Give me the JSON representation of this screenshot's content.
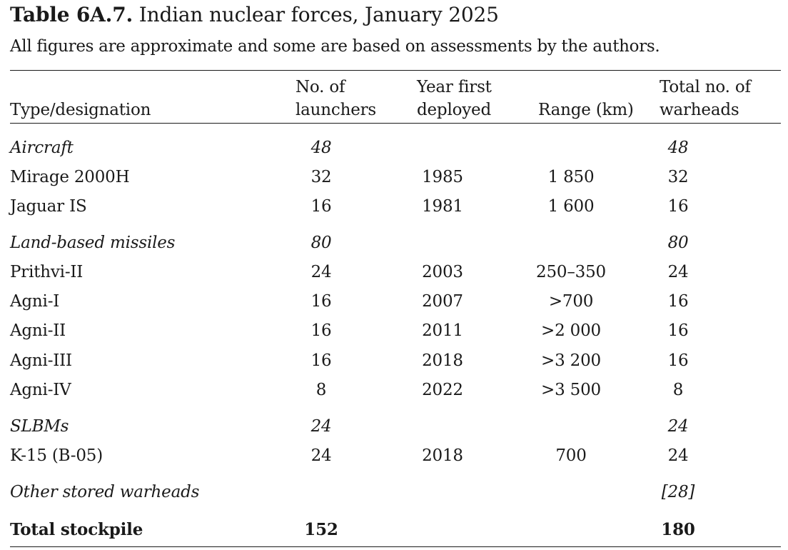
{
  "caption": {
    "label": "Table 6A.7.",
    "title": " Indian nuclear forces, January 2025"
  },
  "note": "All figures are approximate and some are based on assessments by the authors.",
  "header": {
    "type": "Type/designation",
    "launchers_1": "No. of",
    "launchers_2": "launchers",
    "year_1": "Year first",
    "year_2": "deployed",
    "range": "Range (km)",
    "warheads_1": "Total no. of",
    "warheads_2": "warheads"
  },
  "rows": [
    {
      "type": "Aircraft",
      "launchers": "48",
      "year": "",
      "range": "",
      "warheads": "48",
      "style": "section"
    },
    {
      "type": "Mirage 2000H",
      "launchers": "32",
      "year": "1985",
      "range": "1 850",
      "warheads": "32",
      "style": "item"
    },
    {
      "type": "Jaguar IS",
      "launchers": "16",
      "year": "1981",
      "range": "1 600",
      "warheads": "16",
      "style": "item"
    },
    {
      "type": "Land-based missiles",
      "launchers": "80",
      "year": "",
      "range": "",
      "warheads": "80",
      "style": "section"
    },
    {
      "type": "Prithvi-II",
      "launchers": "24",
      "year": "2003",
      "range": "250–350",
      "warheads": "24",
      "style": "item"
    },
    {
      "type": "Agni-I",
      "launchers": "16",
      "year": "2007",
      "range": ">700",
      "warheads": "16",
      "style": "item"
    },
    {
      "type": "Agni-II",
      "launchers": "16",
      "year": "2011",
      "range": ">2 000",
      "warheads": "16",
      "style": "item"
    },
    {
      "type": "Agni-III",
      "launchers": "16",
      "year": "2018",
      "range": ">3 200",
      "warheads": "16",
      "style": "item"
    },
    {
      "type": "Agni-IV",
      "launchers": "8",
      "year": "2022",
      "range": ">3 500",
      "warheads": "8",
      "style": "item"
    },
    {
      "type": "SLBMs",
      "launchers": "24",
      "year": "",
      "range": "",
      "warheads": "24",
      "style": "section"
    },
    {
      "type": "K-15 (B-05)",
      "launchers": "24",
      "year": "2018",
      "range": "700",
      "warheads": "24",
      "style": "item"
    },
    {
      "type": "Other stored warheads",
      "launchers": "",
      "year": "",
      "range": "",
      "warheads": "[28]",
      "style": "section"
    },
    {
      "type": "Total stockpile",
      "launchers": "152",
      "year": "",
      "range": "",
      "warheads": "180",
      "style": "total"
    }
  ]
}
